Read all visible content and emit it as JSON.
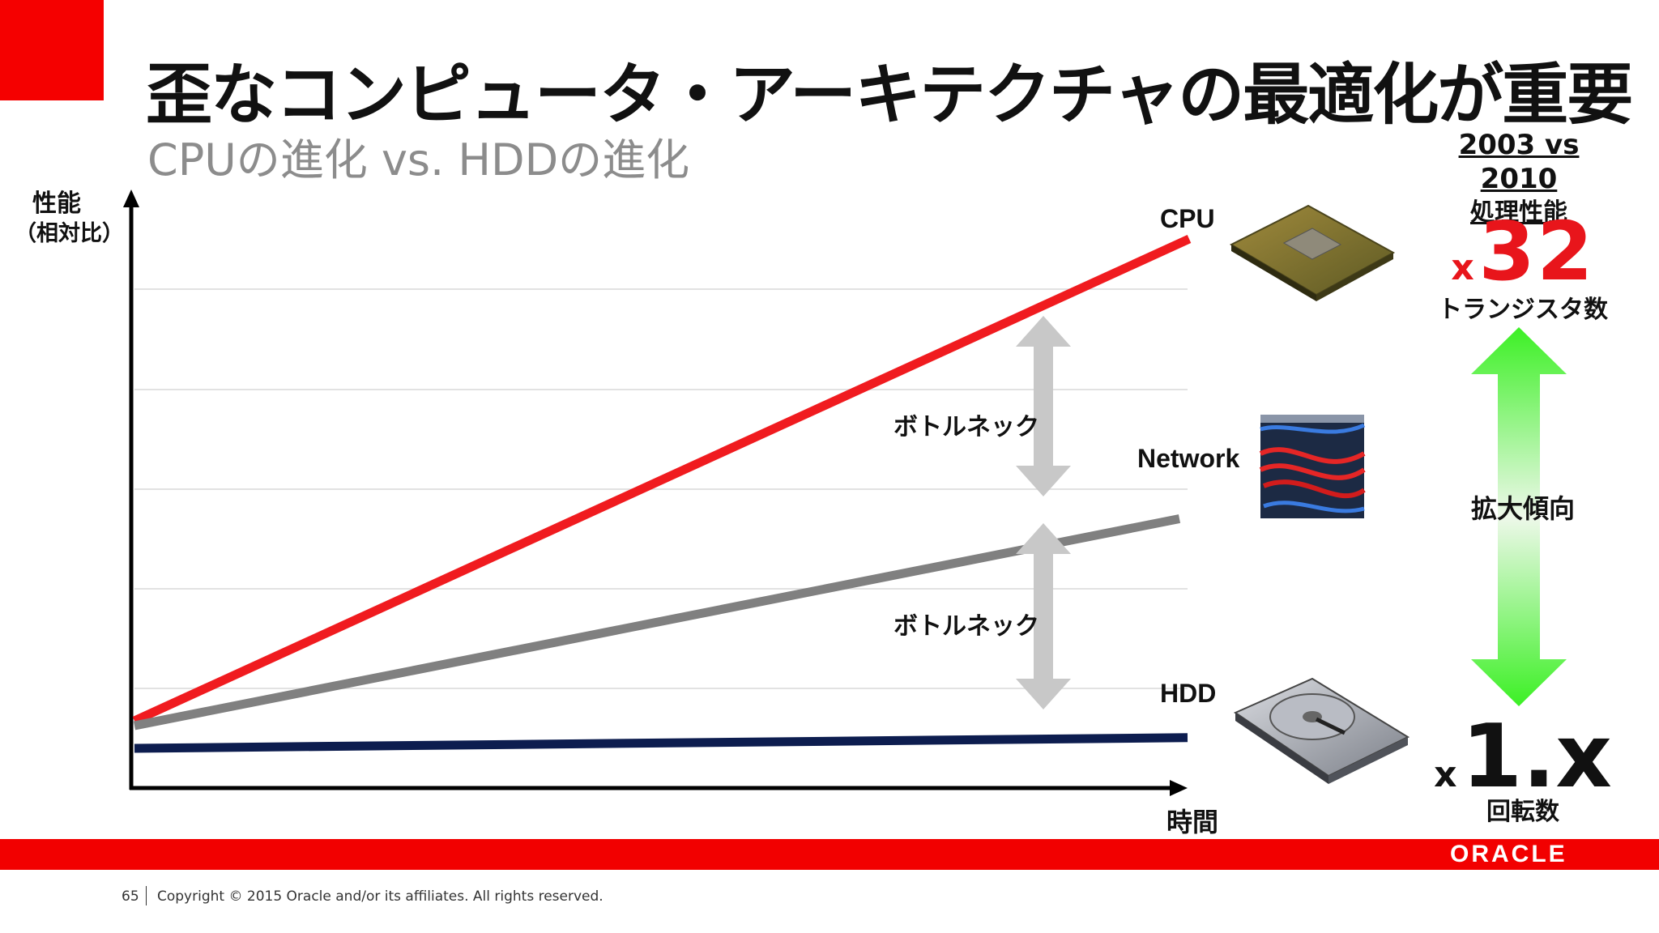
{
  "slide": {
    "title": "歪なコンピュータ・アーキテクチャの最適化が重要",
    "subtitle": "CPUの進化 vs. HDDの進化",
    "brand_color": "#f50000"
  },
  "chart_data": {
    "type": "line",
    "ylabel": "性能",
    "ylabel_sub": "（相対比）",
    "xlabel": "時間",
    "grid": true,
    "series": [
      {
        "name": "CPU",
        "color": "#f01b1f",
        "values": [
          1,
          32
        ]
      },
      {
        "name": "Network",
        "color": "#808080",
        "values": [
          1,
          15
        ]
      },
      {
        "name": "HDD",
        "color": "#0d1d4f",
        "values": [
          1,
          1.7
        ]
      }
    ],
    "annotations": [
      {
        "text": "ボトルネック",
        "between": [
          "CPU",
          "Network"
        ]
      },
      {
        "text": "ボトルネック",
        "between": [
          "Network",
          "HDD"
        ]
      }
    ]
  },
  "comparison": {
    "heading_years": "2003 vs 2010",
    "heading_sub": "処理性能",
    "cpu": {
      "prefix": "x",
      "value": "32",
      "caption": "トランジスタ数"
    },
    "trend": "拡大傾向",
    "hdd": {
      "prefix": "x",
      "value": "1.x",
      "caption": "回転数"
    }
  },
  "images": {
    "cpu": "cpu-chip-photo",
    "network": "network-cables-photo",
    "hdd": "hard-drive-photo"
  },
  "footer": {
    "page_number": "65",
    "copyright": "Copyright © 2015 Oracle and/or its affiliates. All rights reserved.",
    "logo": "ORACLE"
  }
}
